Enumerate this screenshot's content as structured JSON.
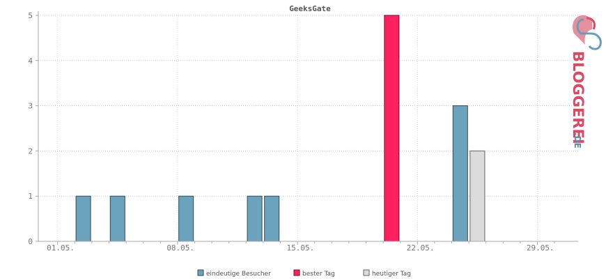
{
  "chart_data": {
    "type": "bar",
    "title": "GeeksGate",
    "xlabel": "",
    "ylabel": "",
    "ylim": [
      0,
      5
    ],
    "yticks": [
      0,
      1,
      2,
      3,
      4,
      5
    ],
    "grid": true,
    "x_tick_labels": [
      "01.05.",
      "08.05.",
      "15.05.",
      "22.05.",
      "29.05."
    ],
    "categories": [
      "01.05.",
      "02.05.",
      "03.05.",
      "04.05.",
      "05.05.",
      "06.05.",
      "07.05.",
      "08.05.",
      "09.05.",
      "10.05.",
      "11.05.",
      "12.05.",
      "13.05.",
      "14.05.",
      "15.05.",
      "16.05.",
      "17.05.",
      "18.05.",
      "19.05.",
      "20.05.",
      "21.05.",
      "22.05.",
      "23.05.",
      "24.05.",
      "25.05.",
      "26.05.",
      "27.05.",
      "28.05.",
      "29.05.",
      "30.05."
    ],
    "series": [
      {
        "name": "eindeutige Besucher",
        "color": "#6ba3bc",
        "points": [
          {
            "x": "02.05.",
            "y": 1
          },
          {
            "x": "04.05.",
            "y": 1
          },
          {
            "x": "08.05.",
            "y": 1
          },
          {
            "x": "12.05.",
            "y": 1
          },
          {
            "x": "13.05.",
            "y": 1
          },
          {
            "x": "24.05.",
            "y": 3
          }
        ]
      },
      {
        "name": "bester Tag",
        "color": "#ff2060",
        "points": [
          {
            "x": "20.05.",
            "y": 5
          }
        ]
      },
      {
        "name": "heutiger Tag",
        "color": "#dcdcdc",
        "points": [
          {
            "x": "25.05.",
            "y": 2
          }
        ]
      }
    ],
    "legend_position": "bottom-center"
  },
  "logo": {
    "text_main": "BLOGGEREI",
    "text_suffix": ".DE",
    "color_main": "#d94a63",
    "color_suffix": "#5b8da8"
  }
}
